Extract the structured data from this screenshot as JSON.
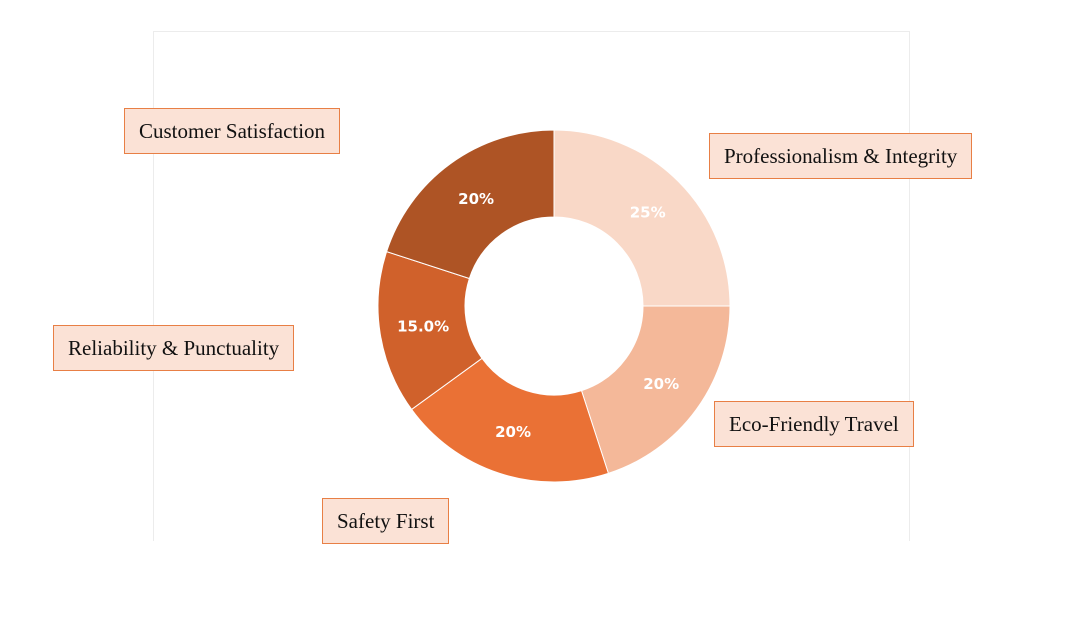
{
  "chart_data": {
    "type": "pie",
    "donut": true,
    "title": "",
    "legend": "none",
    "grid": false,
    "slices": [
      {
        "label": "Professionalism & Integrity",
        "value": 25,
        "display": "25%",
        "color": "#f9d8c7"
      },
      {
        "label": "Eco-Friendly Travel",
        "value": 20,
        "display": "20%",
        "color": "#f4b899"
      },
      {
        "label": "Safety First",
        "value": 20,
        "display": "20%",
        "color": "#ea7135"
      },
      {
        "label": "Reliability & Punctuality",
        "value": 15,
        "display": "15.0%",
        "color": "#d0612b"
      },
      {
        "label": "Customer Satisfaction",
        "value": 20,
        "display": "20%",
        "color": "#ae5425"
      }
    ]
  },
  "colors": {
    "callout_fill": "#fbe2d6",
    "callout_border": "#e87f45",
    "slice_text": "#ffffff"
  }
}
